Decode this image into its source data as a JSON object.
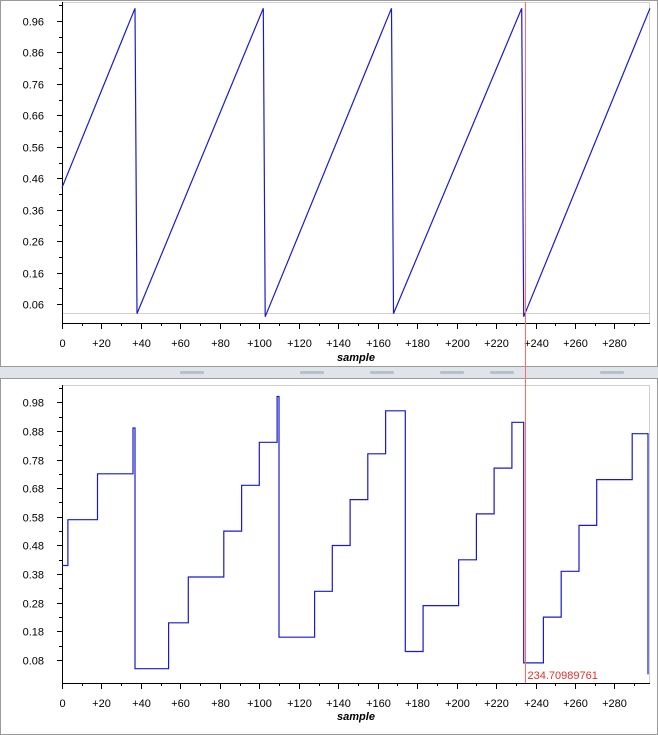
{
  "chart_data": [
    {
      "type": "line",
      "xlabel": "sample",
      "ylabel": "",
      "xlim": [
        0,
        298
      ],
      "ylim": [
        0.0,
        1.02
      ],
      "x_ticks": [
        "0",
        "+20",
        "+40",
        "+60",
        "+80",
        "+100",
        "+120",
        "+140",
        "+160",
        "+180",
        "+200",
        "+220",
        "+240",
        "+260",
        "+280"
      ],
      "y_ticks": [
        "0.06",
        "0.16",
        "0.26",
        "0.36",
        "0.46",
        "0.56",
        "0.66",
        "0.76",
        "0.86",
        "0.96"
      ],
      "series": [
        {
          "color": "#1a1acc",
          "x": [
            0,
            37,
            38,
            102,
            103,
            167,
            168,
            233,
            234,
            298
          ],
          "y": [
            0.43,
            1.0,
            0.03,
            1.0,
            0.02,
            1.0,
            0.03,
            1.0,
            0.02,
            1.0
          ]
        }
      ]
    },
    {
      "type": "line",
      "xlabel": "sample",
      "ylabel": "",
      "xlim": [
        0,
        298
      ],
      "ylim": [
        0.0,
        1.04
      ],
      "x_ticks": [
        "0",
        "+20",
        "+40",
        "+60",
        "+80",
        "+100",
        "+120",
        "+140",
        "+160",
        "+180",
        "+200",
        "+220",
        "+240",
        "+260",
        "+280"
      ],
      "y_ticks": [
        "0.08",
        "0.18",
        "0.28",
        "0.38",
        "0.48",
        "0.58",
        "0.68",
        "0.78",
        "0.88",
        "0.98"
      ],
      "cursor": {
        "x": 234.70989761,
        "label": "234.70989761",
        "color": "#ff6a6a"
      },
      "series": [
        {
          "color": "#1a1acc",
          "step": true,
          "x": [
            0,
            3,
            9,
            18,
            27,
            36,
            37,
            45,
            54,
            64,
            73,
            82,
            91,
            100,
            109,
            110,
            119,
            128,
            137,
            146,
            155,
            164,
            173,
            174,
            183,
            192,
            201,
            210,
            219,
            228,
            234,
            235,
            244,
            253,
            262,
            271,
            280,
            289,
            296,
            297
          ],
          "y": [
            0.41,
            0.57,
            0.57,
            0.73,
            0.73,
            0.89,
            0.05,
            0.05,
            0.21,
            0.37,
            0.37,
            0.53,
            0.69,
            0.84,
            1.0,
            0.16,
            0.16,
            0.32,
            0.48,
            0.64,
            0.8,
            0.95,
            0.95,
            0.11,
            0.27,
            0.27,
            0.43,
            0.59,
            0.75,
            0.91,
            0.07,
            0.07,
            0.23,
            0.39,
            0.55,
            0.71,
            0.71,
            0.87,
            0.87,
            0.03
          ]
        }
      ]
    }
  ]
}
